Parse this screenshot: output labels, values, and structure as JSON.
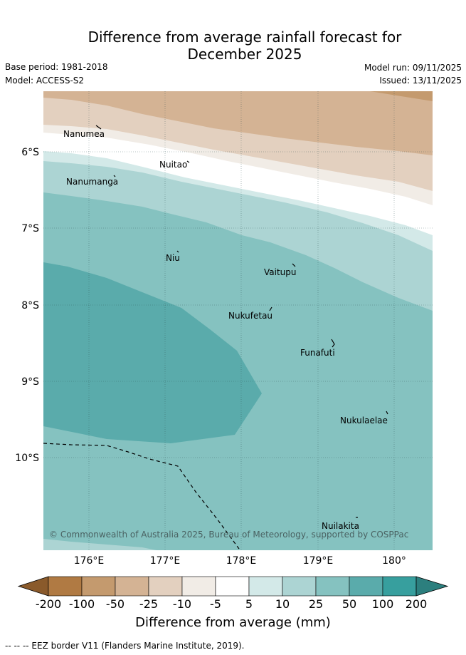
{
  "title": {
    "line1": "Difference from average rainfall forecast for",
    "line2": "December 2025"
  },
  "meta": {
    "base_period": "Base period: 1981-2018",
    "model": "Model: ACCESS-S2",
    "model_run": "Model run: 09/11/2025",
    "issued": "Issued: 13/11/2025"
  },
  "map": {
    "lon_ticks": [
      "176°E",
      "177°E",
      "178°E",
      "179°E",
      "180°"
    ],
    "lat_ticks": [
      "6°S",
      "7°S",
      "8°S",
      "9°S",
      "10°S"
    ],
    "islands": [
      {
        "name": "Nanumea",
        "key": "nanumea"
      },
      {
        "name": "Nuitao",
        "key": "nuitao"
      },
      {
        "name": "Nanumanga",
        "key": "nanumanga"
      },
      {
        "name": "Niu",
        "key": "niu"
      },
      {
        "name": "Vaitupu",
        "key": "vaitupu"
      },
      {
        "name": "Nukufetau",
        "key": "nukufetau"
      },
      {
        "name": "Funafuti",
        "key": "funafuti"
      },
      {
        "name": "Nukulaelae",
        "key": "nukulaelae"
      },
      {
        "name": "Nuilakita",
        "key": "nuilakita"
      }
    ],
    "copyright": "© Commonwealth of Australia 2025, Bureau of Meteorology, supported by COSPPac"
  },
  "colorbar": {
    "title": "Difference from average (mm)",
    "labels": [
      "-200",
      "-100",
      "-50",
      "-25",
      "-10",
      "-5",
      "5",
      "10",
      "25",
      "50",
      "100",
      "200"
    ],
    "colors": [
      "#8a5a2b",
      "#b07a43",
      "#c49a6e",
      "#d4b394",
      "#e3d0bf",
      "#f1ece6",
      "#ffffff",
      "#d3e9e8",
      "#acd4d3",
      "#85c2c0",
      "#5aabab",
      "#379f9e",
      "#2c7f7e"
    ]
  },
  "footnote": "--  --  -- EEZ border V11 (Flanders Marine Institute, 2019)."
}
